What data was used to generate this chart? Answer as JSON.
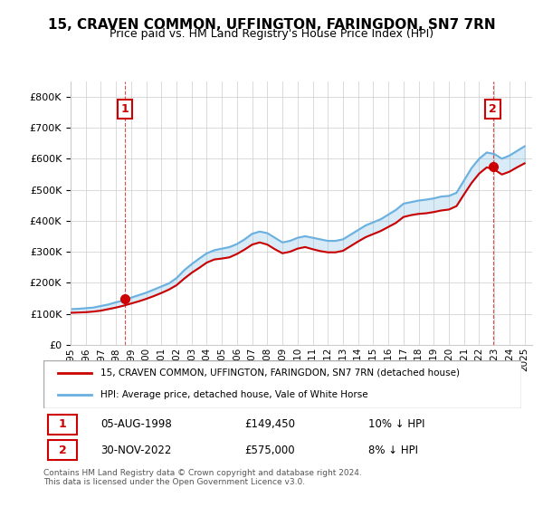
{
  "title": "15, CRAVEN COMMON, UFFINGTON, FARINGDON, SN7 7RN",
  "subtitle": "Price paid vs. HM Land Registry's House Price Index (HPI)",
  "legend_line1": "15, CRAVEN COMMON, UFFINGTON, FARINGDON, SN7 7RN (detached house)",
  "legend_line2": "HPI: Average price, detached house, Vale of White Horse",
  "annotation1_label": "1",
  "annotation1_date": "05-AUG-1998",
  "annotation1_price": "£149,450",
  "annotation1_hpi": "10% ↓ HPI",
  "annotation2_label": "2",
  "annotation2_date": "30-NOV-2022",
  "annotation2_price": "£575,000",
  "annotation2_hpi": "8% ↓ HPI",
  "footnote": "Contains HM Land Registry data © Crown copyright and database right 2024.\nThis data is licensed under the Open Government Licence v3.0.",
  "hpi_color": "#6ab0e0",
  "price_color": "#cc0000",
  "annotation_color": "#cc0000",
  "ylim": [
    0,
    850000
  ],
  "xlim_start": 1995.0,
  "xlim_end": 2025.5,
  "purchase1_x": 1998.6,
  "purchase1_y": 149450,
  "purchase2_x": 2022.9,
  "purchase2_y": 575000,
  "hpi_x": [
    1995.0,
    1995.5,
    1996.0,
    1996.5,
    1997.0,
    1997.5,
    1998.0,
    1998.5,
    1999.0,
    1999.5,
    2000.0,
    2000.5,
    2001.0,
    2001.5,
    2002.0,
    2002.5,
    2003.0,
    2003.5,
    2004.0,
    2004.5,
    2005.0,
    2005.5,
    2006.0,
    2006.5,
    2007.0,
    2007.5,
    2008.0,
    2008.5,
    2009.0,
    2009.5,
    2010.0,
    2010.5,
    2011.0,
    2011.5,
    2012.0,
    2012.5,
    2013.0,
    2013.5,
    2014.0,
    2014.5,
    2015.0,
    2015.5,
    2016.0,
    2016.5,
    2017.0,
    2017.5,
    2018.0,
    2018.5,
    2019.0,
    2019.5,
    2020.0,
    2020.5,
    2021.0,
    2021.5,
    2022.0,
    2022.5,
    2023.0,
    2023.5,
    2024.0,
    2024.5,
    2025.0
  ],
  "hpi_y": [
    115000,
    116000,
    118000,
    120000,
    125000,
    130000,
    137000,
    143000,
    152000,
    160000,
    168000,
    178000,
    188000,
    198000,
    215000,
    240000,
    260000,
    278000,
    295000,
    305000,
    310000,
    315000,
    325000,
    340000,
    358000,
    365000,
    360000,
    345000,
    330000,
    335000,
    345000,
    350000,
    345000,
    340000,
    335000,
    335000,
    340000,
    355000,
    370000,
    385000,
    395000,
    405000,
    420000,
    435000,
    455000,
    460000,
    465000,
    468000,
    472000,
    478000,
    480000,
    490000,
    530000,
    570000,
    600000,
    620000,
    615000,
    600000,
    610000,
    625000,
    640000
  ],
  "price_x": [
    1995.0,
    1995.5,
    1996.0,
    1996.5,
    1997.0,
    1997.5,
    1998.0,
    1998.5,
    1999.0,
    1999.5,
    2000.0,
    2000.5,
    2001.0,
    2001.5,
    2002.0,
    2002.5,
    2003.0,
    2003.5,
    2004.0,
    2004.5,
    2005.0,
    2005.5,
    2006.0,
    2006.5,
    2007.0,
    2007.5,
    2008.0,
    2008.5,
    2009.0,
    2009.5,
    2010.0,
    2010.5,
    2011.0,
    2011.5,
    2012.0,
    2012.5,
    2013.0,
    2013.5,
    2014.0,
    2014.5,
    2015.0,
    2015.5,
    2016.0,
    2016.5,
    2017.0,
    2017.5,
    2018.0,
    2018.5,
    2019.0,
    2019.5,
    2020.0,
    2020.5,
    2021.0,
    2021.5,
    2022.0,
    2022.5,
    2023.0,
    2023.5,
    2024.0,
    2024.5,
    2025.0
  ],
  "price_y": [
    103000,
    104000,
    105000,
    107000,
    110000,
    115000,
    120000,
    126000,
    133000,
    140000,
    148000,
    157000,
    167000,
    178000,
    192000,
    213000,
    232000,
    248000,
    265000,
    275000,
    278000,
    282000,
    293000,
    307000,
    323000,
    330000,
    323000,
    308000,
    295000,
    300000,
    310000,
    315000,
    308000,
    302000,
    298000,
    298000,
    303000,
    318000,
    333000,
    347000,
    357000,
    367000,
    380000,
    393000,
    412000,
    418000,
    422000,
    424000,
    428000,
    433000,
    436000,
    447000,
    485000,
    522000,
    552000,
    572000,
    565000,
    549000,
    558000,
    572000,
    585000
  ]
}
